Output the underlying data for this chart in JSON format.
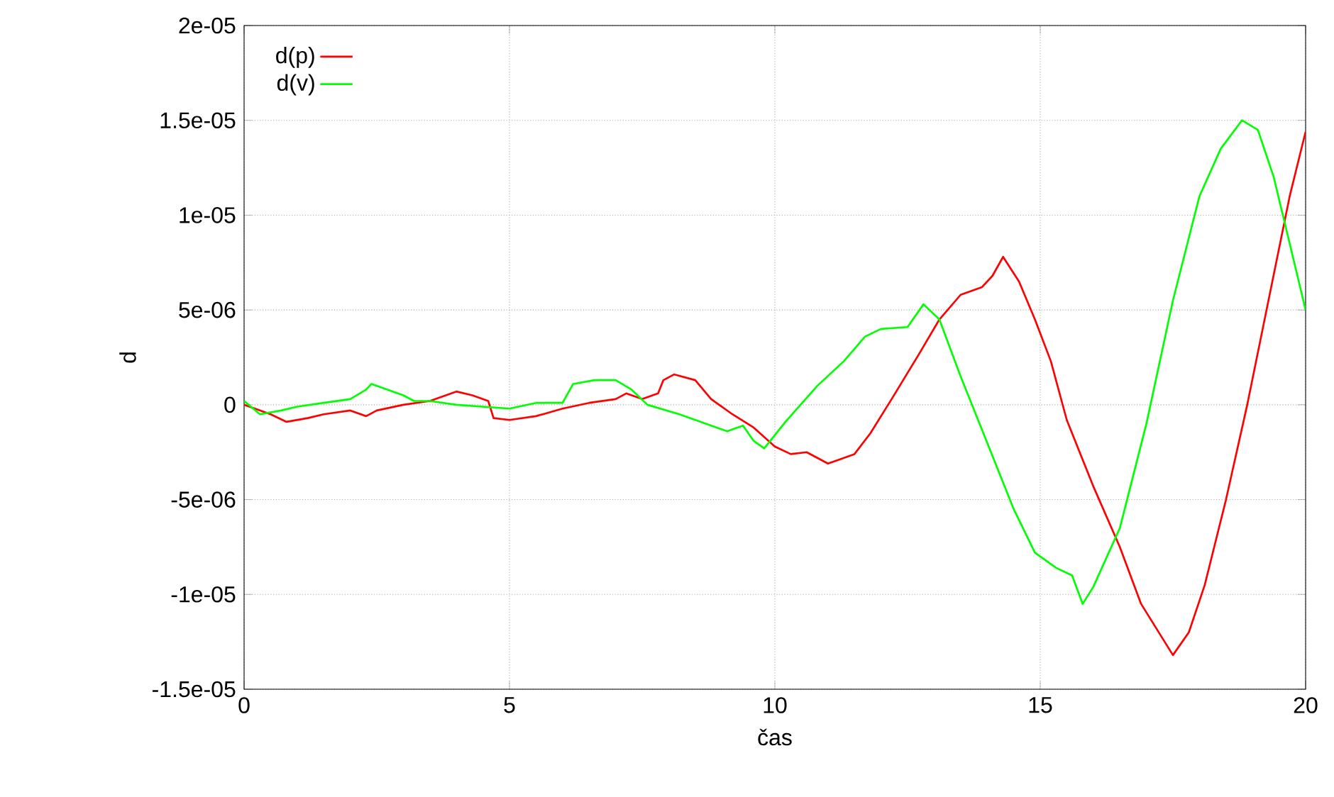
{
  "chart_data": {
    "type": "line",
    "xlabel": "čas",
    "ylabel": "d",
    "xlim": [
      0,
      20
    ],
    "xticks": [
      0,
      5,
      10,
      15,
      20
    ],
    "ylim": [
      -1.5e-05,
      2e-05
    ],
    "yticks": [
      {
        "value": -1.5e-05,
        "label": "-1.5e-05"
      },
      {
        "value": -1e-05,
        "label": "-1e-05"
      },
      {
        "value": -5e-06,
        "label": "-5e-06"
      },
      {
        "value": 0,
        "label": "0"
      },
      {
        "value": 5e-06,
        "label": "5e-06"
      },
      {
        "value": 1e-05,
        "label": "1e-05"
      },
      {
        "value": 1.5e-05,
        "label": "1.5e-05"
      },
      {
        "value": 2e-05,
        "label": "2e-05"
      }
    ],
    "grid": true,
    "legend": "top left",
    "line_style": "solid",
    "series": [
      {
        "name": "d(p)",
        "color": "#ff0000",
        "x": [
          0,
          0.5,
          0.8,
          1.2,
          1.5,
          2.0,
          2.3,
          2.5,
          3.0,
          3.5,
          4.0,
          4.3,
          4.6,
          4.7,
          5.0,
          5.5,
          6.0,
          6.5,
          7.0,
          7.2,
          7.5,
          7.8,
          7.9,
          8.1,
          8.5,
          8.8,
          9.2,
          9.6,
          10.0,
          10.3,
          10.6,
          10.8,
          11.0,
          11.2,
          11.5,
          11.8,
          12.2,
          12.7,
          13.1,
          13.5,
          13.9,
          14.1,
          14.3,
          14.6,
          14.9,
          15.2,
          15.5,
          16.0,
          16.5,
          16.9,
          17.3,
          17.5,
          17.8,
          18.1,
          18.5,
          18.9,
          19.3,
          19.7,
          20
        ],
        "values": [
          0,
          -5e-07,
          -9e-07,
          -7e-07,
          -5e-07,
          -3e-07,
          -6e-07,
          -3e-07,
          0,
          2e-07,
          7e-07,
          5e-07,
          2e-07,
          -7e-07,
          -8e-07,
          -6e-07,
          -2e-07,
          1e-07,
          3e-07,
          6e-07,
          3e-07,
          6e-07,
          1.3e-06,
          1.6e-06,
          1.3e-06,
          3e-07,
          -5e-07,
          -1.2e-06,
          -2.2e-06,
          -2.6e-06,
          -2.5e-06,
          -2.8e-06,
          -3.1e-06,
          -2.9e-06,
          -2.6e-06,
          -1.5e-06,
          3e-07,
          2.6e-06,
          4.5e-06,
          5.8e-06,
          6.2e-06,
          6.8e-06,
          7.8e-06,
          6.5e-06,
          4.5e-06,
          2.3e-06,
          -8e-07,
          -4.3e-06,
          -7.5e-06,
          -1.05e-05,
          -1.23e-05,
          -1.32e-05,
          -1.2e-05,
          -9.5e-06,
          -5e-06,
          0,
          5.5e-06,
          1.1e-05,
          1.44e-05
        ]
      },
      {
        "name": "d(v)",
        "color": "#00ff00",
        "x": [
          0,
          0.3,
          0.7,
          1.0,
          1.5,
          2.0,
          2.3,
          2.4,
          2.7,
          3.0,
          3.2,
          3.5,
          4.0,
          4.5,
          5.0,
          5.5,
          6.0,
          6.2,
          6.6,
          7.0,
          7.3,
          7.6,
          8.2,
          8.8,
          9.1,
          9.4,
          9.6,
          9.8,
          10.2,
          10.8,
          11.3,
          11.7,
          12.0,
          12.5,
          12.8,
          13.1,
          13.5,
          14.0,
          14.5,
          14.9,
          15.3,
          15.6,
          15.8,
          16.0,
          16.5,
          17.0,
          17.5,
          18.0,
          18.4,
          18.8,
          19.1,
          19.4,
          19.7,
          20
        ],
        "values": [
          2e-07,
          -5e-07,
          -3e-07,
          -1e-07,
          1e-07,
          3e-07,
          8e-07,
          1.1e-06,
          8e-07,
          5e-07,
          2e-07,
          2e-07,
          0,
          -1e-07,
          -2e-07,
          1e-07,
          1e-07,
          1.1e-06,
          1.3e-06,
          1.3e-06,
          8e-07,
          0,
          -5e-07,
          -1.1e-06,
          -1.4e-06,
          -1.1e-06,
          -1.9e-06,
          -2.3e-06,
          -9e-07,
          1e-06,
          2.3e-06,
          3.6e-06,
          4e-06,
          4.1e-06,
          5.3e-06,
          4.5e-06,
          1.5e-06,
          -2e-06,
          -5.5e-06,
          -7.8e-06,
          -8.6e-06,
          -9e-06,
          -1.05e-05,
          -9.6e-06,
          -6.5e-06,
          -1e-06,
          5.5e-06,
          1.1e-05,
          1.35e-05,
          1.5e-05,
          1.45e-05,
          1.2e-05,
          8.5e-06,
          5e-06
        ]
      }
    ]
  }
}
